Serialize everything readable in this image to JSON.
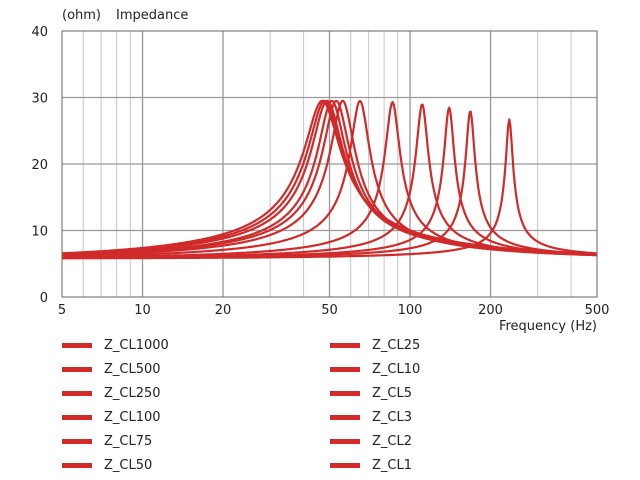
{
  "chart_data": {
    "type": "line",
    "title": "Impedance",
    "ylabel": "(ohm)",
    "xlabel": "Frequency  (Hz)",
    "x_scale": "log",
    "xlim": [
      5,
      500
    ],
    "ylim": [
      0,
      40
    ],
    "x_ticks": [
      5,
      10,
      20,
      50,
      100,
      200,
      500
    ],
    "y_ticks": [
      0,
      10,
      20,
      30,
      40
    ],
    "grid": true,
    "line_color": "#d12a2a",
    "baseline_ohm": 5.8,
    "legend_position": "below",
    "series": [
      {
        "name": "Z_CL1000",
        "fs": 47,
        "peak": 29.5,
        "q_ratio": 0.3
      },
      {
        "name": "Z_CL500",
        "fs": 48,
        "peak": 29.5,
        "q_ratio": 0.28
      },
      {
        "name": "Z_CL250",
        "fs": 49,
        "peak": 29.5,
        "q_ratio": 0.26
      },
      {
        "name": "Z_CL100",
        "fs": 51,
        "peak": 29.5,
        "q_ratio": 0.23
      },
      {
        "name": "Z_CL75",
        "fs": 53,
        "peak": 29.5,
        "q_ratio": 0.22
      },
      {
        "name": "Z_CL50",
        "fs": 56,
        "peak": 29.5,
        "q_ratio": 0.2
      },
      {
        "name": "Z_CL25",
        "fs": 65,
        "peak": 29.5,
        "q_ratio": 0.16
      },
      {
        "name": "Z_CL10",
        "fs": 86,
        "peak": 29.3,
        "q_ratio": 0.12
      },
      {
        "name": "Z_CL5",
        "fs": 111,
        "peak": 29.0,
        "q_ratio": 0.1
      },
      {
        "name": "Z_CL3",
        "fs": 140,
        "peak": 28.5,
        "q_ratio": 0.085
      },
      {
        "name": "Z_CL2",
        "fs": 168,
        "peak": 28.0,
        "q_ratio": 0.075
      },
      {
        "name": "Z_CL1",
        "fs": 235,
        "peak": 26.7,
        "q_ratio": 0.06
      }
    ]
  }
}
